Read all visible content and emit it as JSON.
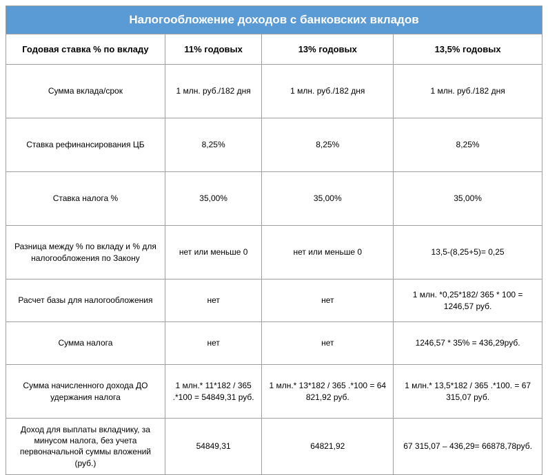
{
  "title": "Налогообложение доходов с банковских вкладов",
  "columns": [
    "Годовая ставка % по вкладу",
    "11% годовых",
    "13% годовых",
    "13,5% годовых"
  ],
  "rows": [
    {
      "label": "Сумма вклада/срок",
      "c1": "1 млн. руб./182 дня",
      "c2": "1 млн. руб./182 дня",
      "c3": "1 млн. руб./182 дня"
    },
    {
      "label": "Ставка рефинансирования ЦБ",
      "c1": "8,25%",
      "c2": "8,25%",
      "c3": "8,25%"
    },
    {
      "label": "Ставка налога %",
      "c1": "35,00%",
      "c2": "35,00%",
      "c3": "35,00%"
    },
    {
      "label": "Разница между % по вкладу и % для налогообложения по Закону",
      "c1": "нет или меньше 0",
      "c2": "нет или меньше 0",
      "c3": "13,5-(8,25+5)= 0,25"
    },
    {
      "label": "Расчет базы для налогообложения",
      "c1": "нет",
      "c2": "нет",
      "c3": "1 млн. *0,25*182/ 365 * 100 = 1246,57 руб."
    },
    {
      "label": "Сумма налога",
      "c1": "нет",
      "c2": "нет",
      "c3": "1246,57 * 35% = 436,29руб."
    },
    {
      "label": "Сумма начисленного дохода ДО удержания налога",
      "c1": "1 млн.* 11*182 / 365 .*100 = 54849,31 руб.",
      "c2": "1 млн.* 13*182 / 365 .*100 = 64 821,92 руб.",
      "c3": "1 млн.* 13,5*182 / 365 .*100. = 67 315,07 руб."
    },
    {
      "label": "Доход для выплаты вкладчику, за минусом налога, без учета первоначальной суммы вложений (руб.)",
      "c1": "54849,31",
      "c2": "64821,92",
      "c3": "67 315,07 – 436,29=  66878,78руб."
    }
  ],
  "style": {
    "title_bg": "#5b9bd5",
    "title_color": "#ffffff",
    "border_color": "#9e9e9e",
    "cell_bg": "#ffffff",
    "text_color": "#000000",
    "title_fontsize": 17,
    "header_fontsize": 13,
    "cell_fontsize": 12
  }
}
